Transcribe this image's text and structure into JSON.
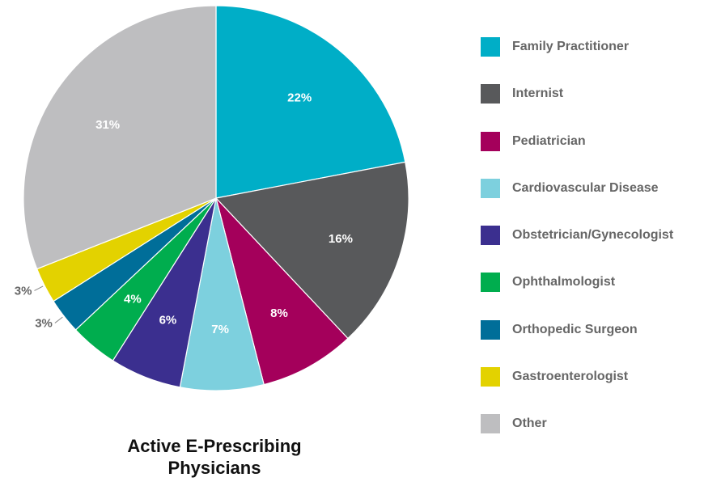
{
  "chart_data": {
    "type": "pie",
    "title": "Active E-Prescribing Physicians",
    "categories": [
      "Family Practitioner",
      "Internist",
      "Pediatrician",
      "Cardiovascular Disease",
      "Obstetrician/Gynecologist",
      "Ophthalmologist",
      "Orthopedic Surgeon",
      "Gastroenterologist",
      "Other"
    ],
    "values": [
      22,
      16,
      8,
      7,
      6,
      4,
      3,
      3,
      31
    ],
    "data_labels": [
      "22%",
      "16%",
      "8%",
      "7%",
      "6%",
      "4%",
      "3%",
      "3%",
      "31%"
    ],
    "colors": [
      "#00AEC7",
      "#58595B",
      "#A4005B",
      "#7DD0DE",
      "#3B2F8F",
      "#00AD4E",
      "#006E99",
      "#E3D200",
      "#BEBEC0"
    ],
    "legend_position": "right",
    "start_angle_deg": 0,
    "direction": "clockwise"
  }
}
